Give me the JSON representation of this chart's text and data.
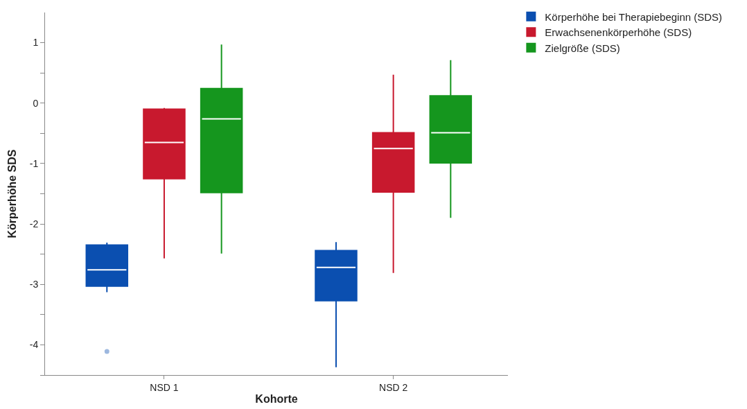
{
  "chart_data": {
    "type": "box",
    "xlabel": "Kohorte",
    "ylabel": "Körperhöhe SDS",
    "categories": [
      "NSD 1",
      "NSD 2"
    ],
    "ylim": [
      -4.5,
      1.5
    ],
    "yticks": [
      {
        "value": -4.5,
        "label": null
      },
      -4,
      {
        "value": -3.5,
        "label": null
      },
      -3,
      {
        "value": -2.5,
        "label": null
      },
      -2,
      {
        "value": -1.5,
        "label": null
      },
      -1,
      {
        "value": -0.5,
        "label": null
      },
      0,
      {
        "value": 0.5,
        "label": null
      },
      1
    ],
    "legend": "top right",
    "series": [
      {
        "name": "Körperhöhe bei Therapiebeginn (SDS)",
        "color": "#0b4fb0",
        "boxes": [
          {
            "low": -3.13,
            "q1": -3.03,
            "median": -2.76,
            "q3": -2.35,
            "high": -2.31,
            "outliers": [
              -4.11
            ]
          },
          {
            "low": -4.37,
            "q1": -3.27,
            "median": -2.72,
            "q3": -2.44,
            "high": -2.3
          }
        ]
      },
      {
        "name": "Erwachsenenkörperhöhe (SDS)",
        "color": "#c8192e",
        "boxes": [
          {
            "low": -2.57,
            "q1": -1.25,
            "median": -0.65,
            "q3": -0.1,
            "high": -0.08
          },
          {
            "low": -2.81,
            "q1": -1.47,
            "median": -0.75,
            "q3": -0.49,
            "high": 0.47
          }
        ]
      },
      {
        "name": "Zielgröße (SDS)",
        "color": "#15961e",
        "boxes": [
          {
            "low": -2.49,
            "q1": -1.48,
            "median": -0.26,
            "q3": 0.24,
            "high": 0.97
          },
          {
            "low": -1.9,
            "q1": -0.99,
            "median": -0.49,
            "q3": 0.12,
            "high": 0.71
          }
        ]
      }
    ]
  }
}
